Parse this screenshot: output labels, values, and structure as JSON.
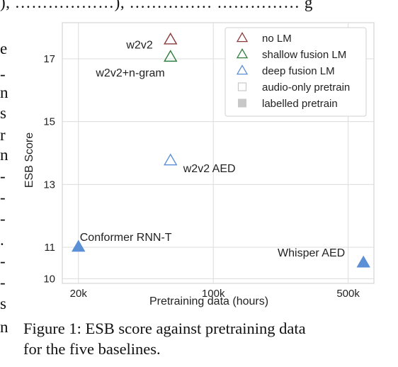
{
  "top_fragment": "), ………………), …………… …………… g",
  "left_fragments": [
    "e",
    "-",
    "n",
    "s",
    "r",
    "n",
    "-",
    "-",
    "-",
    ".",
    "-",
    "-",
    "s",
    "n"
  ],
  "caption_line1": "Figure 1: ESB score against pretraining data",
  "caption_line2": "for the five baselines.",
  "chart_data": {
    "type": "scatter",
    "xlabel": "Pretraining data (hours)",
    "ylabel": "ESB Score",
    "x_scale": "log",
    "x_ticks": [
      {
        "value": 20000,
        "label": "20k"
      },
      {
        "value": 100000,
        "label": "100k"
      },
      {
        "value": 500000,
        "label": "500k"
      }
    ],
    "xlim": [
      16500,
      680000
    ],
    "y_ticks": [
      10,
      11,
      13,
      15,
      17
    ],
    "ylim": [
      9.85,
      18.15
    ],
    "grid": true,
    "legend_position": "top-right",
    "legend": [
      {
        "label": "no LM",
        "marker": "triangle-outline",
        "color": "#8b3a3a"
      },
      {
        "label": "shallow fusion LM",
        "marker": "triangle-outline",
        "color": "#2e7d3c"
      },
      {
        "label": "deep fusion LM",
        "marker": "triangle-outline",
        "color": "#5b8fd6"
      },
      {
        "label": "audio-only pretrain",
        "marker": "square-outline",
        "color": "#c8c8c8"
      },
      {
        "label": "labelled pretrain",
        "marker": "square-filled",
        "color": "#c8c8c8"
      }
    ],
    "points": [
      {
        "label": "w2v2",
        "x": 60000,
        "y": 17.6,
        "lm": "no LM",
        "pretrain": "audio-only",
        "color": "#8b3a3a",
        "filled": false,
        "label_side": "left"
      },
      {
        "label": "w2v2+n-gram",
        "x": 60000,
        "y": 17.05,
        "lm": "shallow fusion LM",
        "pretrain": "audio-only",
        "color": "#2e7d3c",
        "filled": false,
        "label_side": "below-left"
      },
      {
        "label": "w2v2 AED",
        "x": 60000,
        "y": 13.75,
        "lm": "deep fusion LM",
        "pretrain": "audio-only",
        "color": "#5b8fd6",
        "filled": false,
        "label_side": "right"
      },
      {
        "label": "Conformer RNN-T",
        "x": 20000,
        "y": 11.0,
        "lm": "deep fusion LM",
        "pretrain": "labelled",
        "color": "#5b8fd6",
        "filled": true,
        "label_side": "above-right"
      },
      {
        "label": "Whisper AED",
        "x": 600000,
        "y": 10.5,
        "lm": "deep fusion LM",
        "pretrain": "labelled",
        "color": "#5b8fd6",
        "filled": true,
        "label_side": "above-left"
      }
    ]
  }
}
